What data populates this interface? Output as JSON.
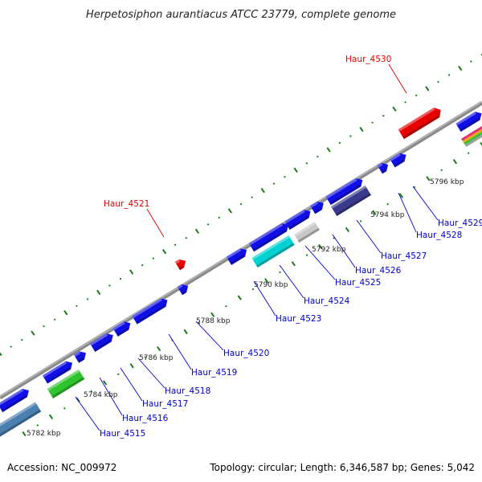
{
  "title": "Herpetosiphon aurantiacus ATCC 23779, complete genome",
  "footer": {
    "accession": "Accession: NC_009972",
    "summary": "Topology: circular; Length: 6,346,587 bp; Genes: 5,042"
  },
  "colors": {
    "backbone": "#888888",
    "tick": "#1a7a1a",
    "gene_default": "#1010e6",
    "label_default": "#0000cc",
    "label_highlight": "#dd0000"
  },
  "scale_labels": [
    "5782 kbp",
    "5784 kbp",
    "5786 kbp",
    "5788 kbp",
    "5790 kbp",
    "5792 kbp",
    "5794 kbp",
    "5796 kbp"
  ],
  "genes": [
    {
      "name": "Haur_4515",
      "color": "#1010e6",
      "highlight": false
    },
    {
      "name": "Haur_4516",
      "color": "#1010e6",
      "highlight": false
    },
    {
      "name": "Haur_4517",
      "color": "#1010e6",
      "highlight": false
    },
    {
      "name": "Haur_4518",
      "color": "#1010e6",
      "highlight": false
    },
    {
      "name": "Haur_4519",
      "color": "#1010e6",
      "highlight": false
    },
    {
      "name": "Haur_4520",
      "color": "#1010e6",
      "highlight": false
    },
    {
      "name": "Haur_4521",
      "color": "#e60000",
      "highlight": true
    },
    {
      "name": "Haur_4523",
      "color": "#1010e6",
      "highlight": false
    },
    {
      "name": "Haur_4524",
      "color": "#1010e6",
      "highlight": false
    },
    {
      "name": "Haur_4525",
      "color": "#1010e6",
      "highlight": false
    },
    {
      "name": "Haur_4526",
      "color": "#1010e6",
      "highlight": false
    },
    {
      "name": "Haur_4527",
      "color": "#1010e6",
      "highlight": false
    },
    {
      "name": "Haur_4528",
      "color": "#1010e6",
      "highlight": false
    },
    {
      "name": "Haur_4529",
      "color": "#1010e6",
      "highlight": false
    },
    {
      "name": "Haur_4530",
      "color": "#e60000",
      "highlight": true
    }
  ],
  "other_features": [
    {
      "id": "blue-gray",
      "color": "#4a7fb0"
    },
    {
      "id": "green",
      "color": "#2fc42f"
    },
    {
      "id": "cyan",
      "color": "#00d2d2"
    },
    {
      "id": "light-gray",
      "color": "#c8c8c8"
    },
    {
      "id": "navy",
      "color": "#3a3a8c"
    }
  ]
}
